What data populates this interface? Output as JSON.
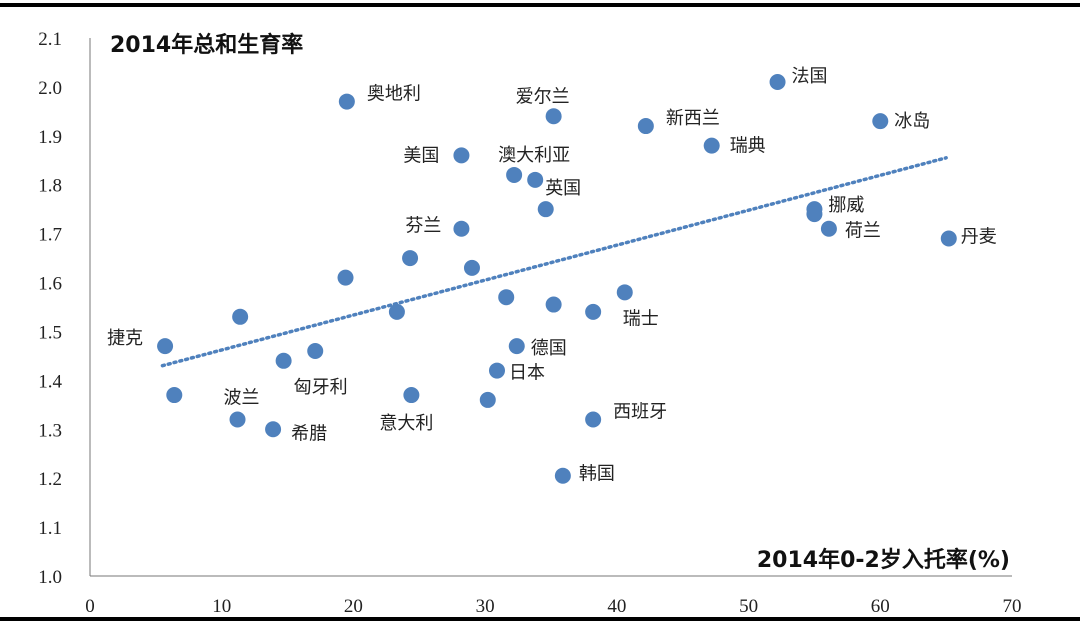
{
  "chart_data": {
    "type": "scatter",
    "title": "2014年总和生育率",
    "xlabel": "2014年0-2岁入托率(%)",
    "ylabel": "",
    "xlim": [
      0,
      70
    ],
    "ylim": [
      1.0,
      2.1
    ],
    "xticks": [
      "0",
      "10",
      "20",
      "30",
      "40",
      "50",
      "60",
      "70"
    ],
    "yticks": [
      "1.0",
      "1.1",
      "1.2",
      "1.3",
      "1.4",
      "1.5",
      "1.6",
      "1.7",
      "1.8",
      "1.9",
      "2.0",
      "2.1"
    ],
    "point_color": "#4f81bd",
    "trendline": {
      "type": "linear",
      "style": "dotted",
      "color": "#4f81bd",
      "x": [
        5.5,
        65
      ],
      "y": [
        1.43,
        1.855
      ]
    },
    "points": [
      {
        "x": 19.5,
        "y": 1.97,
        "label": "奥地利"
      },
      {
        "x": 35.2,
        "y": 1.94,
        "label": "爱尔兰"
      },
      {
        "x": 52.2,
        "y": 2.01,
        "label": "法国"
      },
      {
        "x": 42.2,
        "y": 1.92,
        "label": "新西兰"
      },
      {
        "x": 60.0,
        "y": 1.93,
        "label": "冰岛"
      },
      {
        "x": 28.2,
        "y": 1.86,
        "label": "美国"
      },
      {
        "x": 47.2,
        "y": 1.88,
        "label": "瑞典"
      },
      {
        "x": 32.2,
        "y": 1.82,
        "label": "澳大利亚"
      },
      {
        "x": 33.8,
        "y": 1.81,
        "label": "英国"
      },
      {
        "x": 34.6,
        "y": 1.75,
        "label": ""
      },
      {
        "x": 28.2,
        "y": 1.71,
        "label": "芬兰"
      },
      {
        "x": 55.0,
        "y": 1.75,
        "label": "挪威"
      },
      {
        "x": 55.0,
        "y": 1.74,
        "label": ""
      },
      {
        "x": 56.1,
        "y": 1.71,
        "label": "荷兰"
      },
      {
        "x": 65.2,
        "y": 1.69,
        "label": "丹麦"
      },
      {
        "x": 24.3,
        "y": 1.65,
        "label": ""
      },
      {
        "x": 29.0,
        "y": 1.63,
        "label": ""
      },
      {
        "x": 19.4,
        "y": 1.61,
        "label": ""
      },
      {
        "x": 31.6,
        "y": 1.57,
        "label": ""
      },
      {
        "x": 35.2,
        "y": 1.555,
        "label": ""
      },
      {
        "x": 40.6,
        "y": 1.58,
        "label": "瑞士"
      },
      {
        "x": 38.2,
        "y": 1.54,
        "label": ""
      },
      {
        "x": 23.3,
        "y": 1.54,
        "label": ""
      },
      {
        "x": 11.4,
        "y": 1.53,
        "label": ""
      },
      {
        "x": 5.7,
        "y": 1.47,
        "label": "捷克"
      },
      {
        "x": 17.1,
        "y": 1.46,
        "label": ""
      },
      {
        "x": 14.7,
        "y": 1.44,
        "label": "匈牙利"
      },
      {
        "x": 32.4,
        "y": 1.47,
        "label": "德国"
      },
      {
        "x": 30.9,
        "y": 1.42,
        "label": "日本"
      },
      {
        "x": 6.4,
        "y": 1.37,
        "label": ""
      },
      {
        "x": 24.4,
        "y": 1.37,
        "label": "意大利"
      },
      {
        "x": 30.2,
        "y": 1.36,
        "label": ""
      },
      {
        "x": 11.2,
        "y": 1.32,
        "label": "波兰"
      },
      {
        "x": 13.9,
        "y": 1.3,
        "label": "希腊"
      },
      {
        "x": 38.2,
        "y": 1.32,
        "label": "西班牙"
      },
      {
        "x": 35.9,
        "y": 1.205,
        "label": "韩国"
      }
    ]
  }
}
